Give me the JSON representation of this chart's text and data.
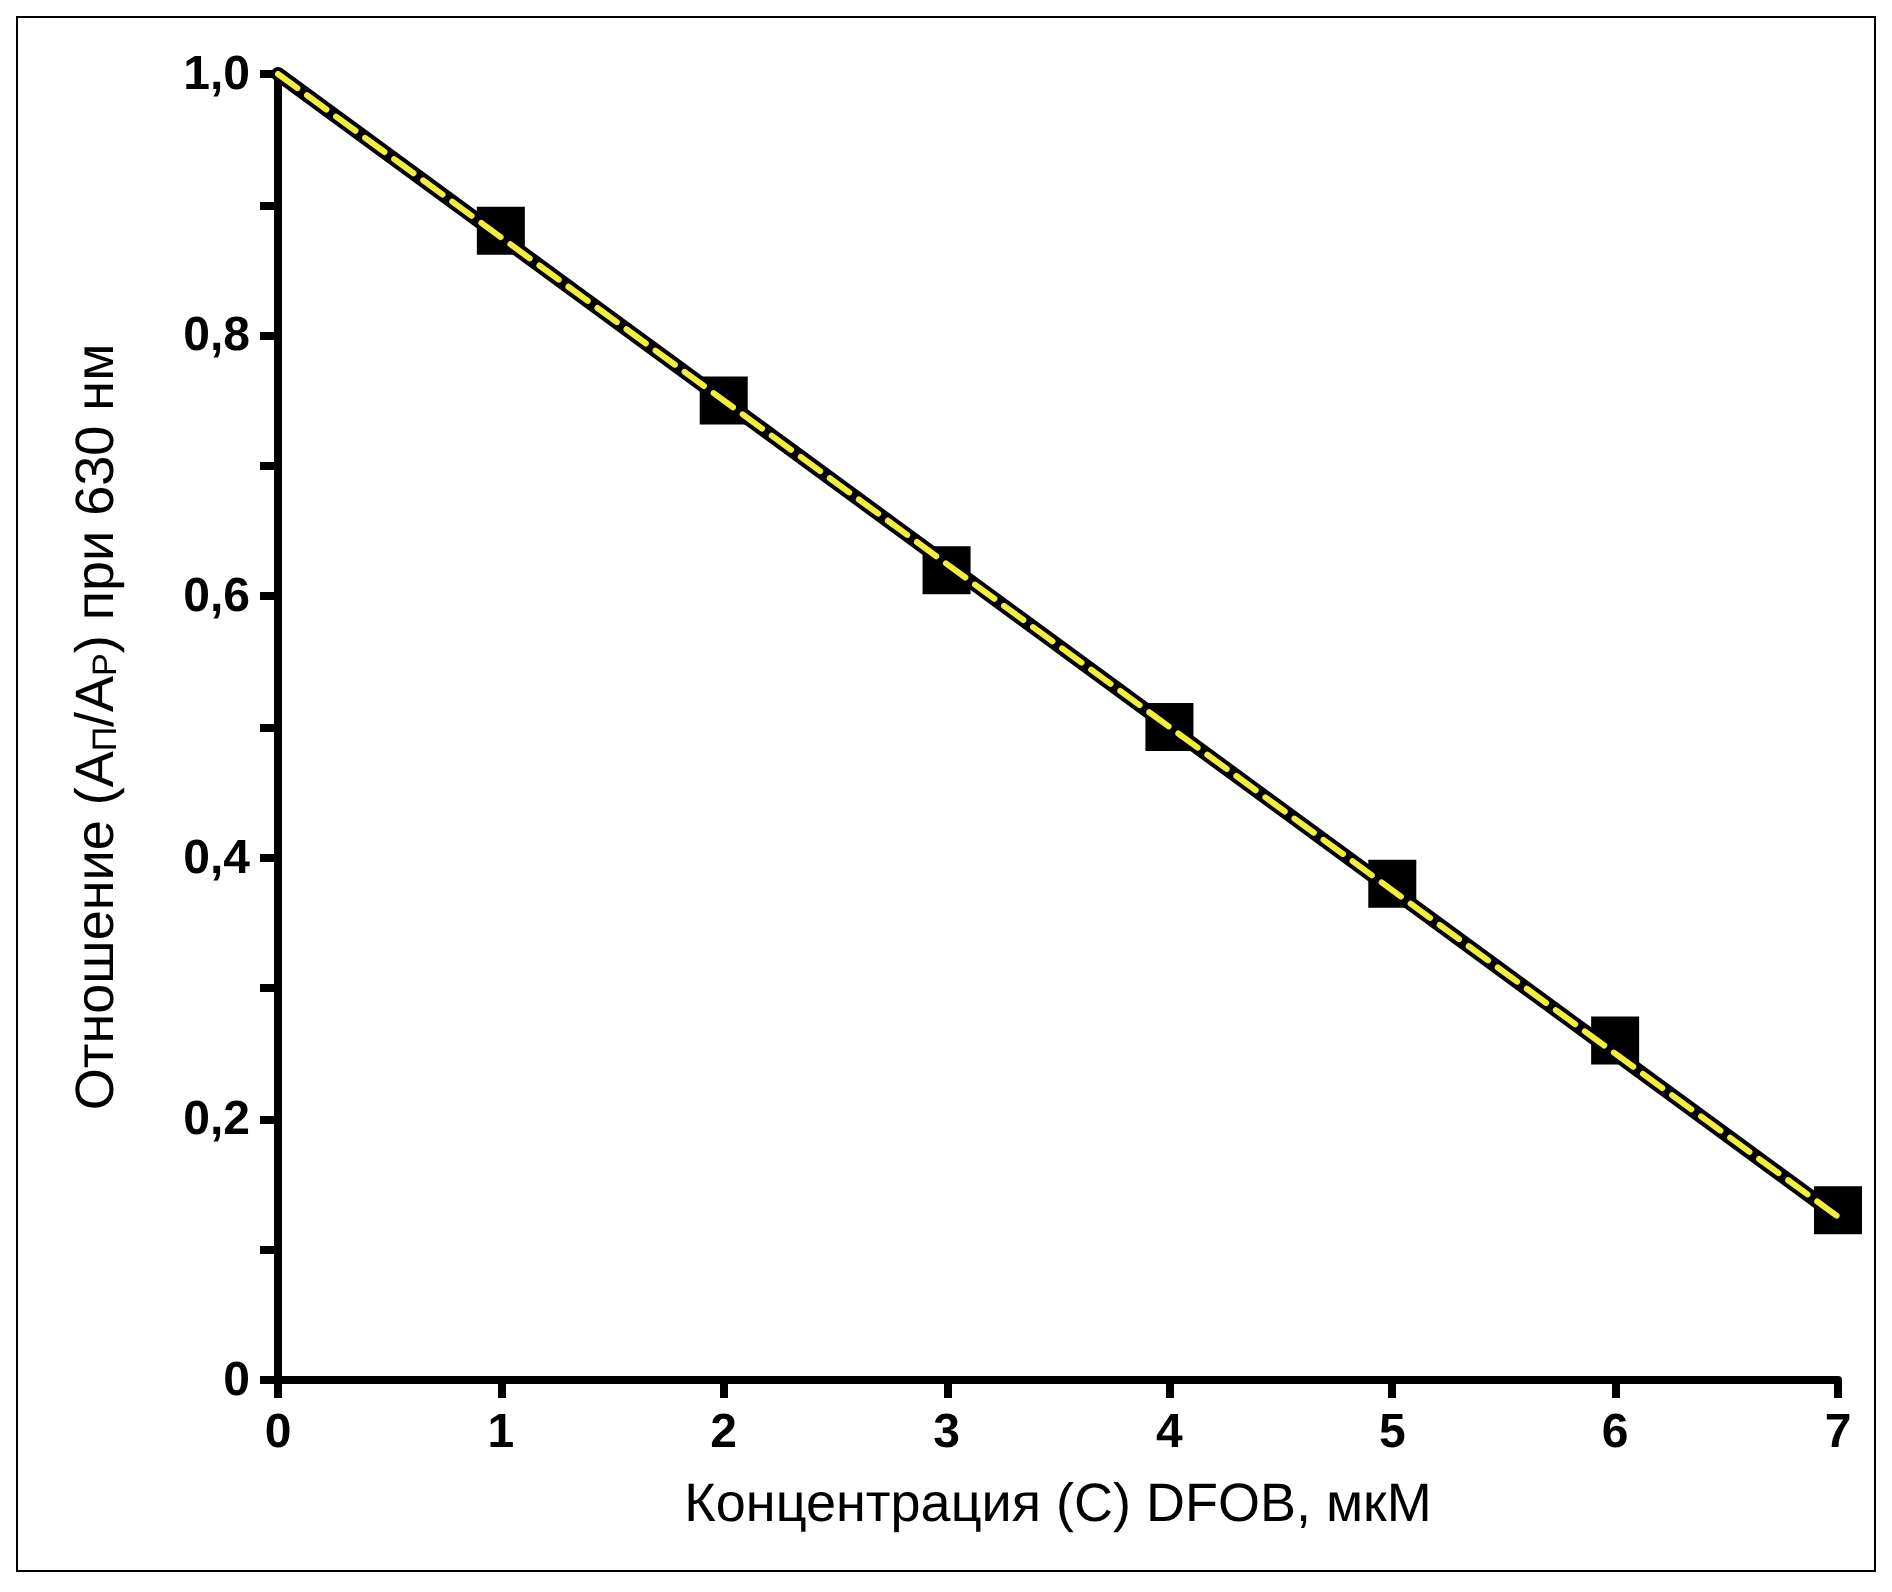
{
  "chart_data": {
    "type": "scatter",
    "xlabel": "Концентрация (C) DFOB, мкМ",
    "ylabel": "Отношение (A$_{П}$/A$_{Р}$) при 630 нм",
    "xlim": [
      0,
      7
    ],
    "ylim": [
      0,
      1.0
    ],
    "xticks": [
      0,
      1,
      2,
      3,
      4,
      5,
      6,
      7
    ],
    "yticks": [
      {
        "value": 0,
        "label": "0"
      },
      {
        "value": 0.1,
        "label": null
      },
      {
        "value": 0.2,
        "label": "0,2"
      },
      {
        "value": 0.3,
        "label": null
      },
      {
        "value": 0.4,
        "label": "0,4"
      },
      {
        "value": 0.5,
        "label": null
      },
      {
        "value": 0.6,
        "label": "0,6"
      },
      {
        "value": 0.7,
        "label": null
      },
      {
        "value": 0.8,
        "label": "0,8"
      },
      {
        "value": 0.9,
        "label": null
      },
      {
        "value": 1.0,
        "label": "1,0"
      }
    ],
    "grid": false,
    "series": [
      {
        "type": "line",
        "color": "#000000",
        "line_style": "solid",
        "x": [
          0,
          7
        ],
        "values": [
          1.0,
          0.125
        ]
      },
      {
        "type": "line",
        "color": "#f2ef3a",
        "line_style": "dashed",
        "x": [
          0,
          7
        ],
        "values": [
          1.0,
          0.125
        ]
      },
      {
        "color": "#000000",
        "marker": "square",
        "x": [
          1,
          2,
          3,
          4,
          5,
          6,
          7
        ],
        "values": [
          0.88,
          0.75,
          0.62,
          0.5,
          0.38,
          0.26,
          0.13
        ]
      }
    ]
  }
}
